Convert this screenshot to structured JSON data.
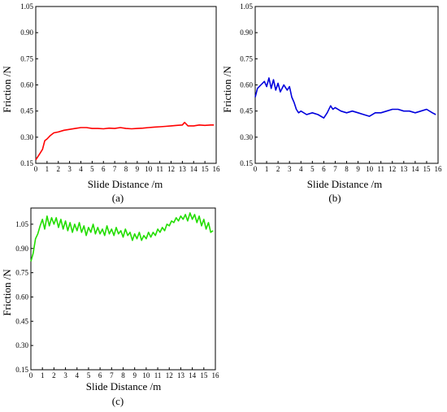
{
  "figure": {
    "panel_labels": [
      "(a)",
      "(b)",
      "(c)"
    ]
  },
  "chart_data": [
    {
      "type": "line",
      "panel": "(a)",
      "xlabel": "Slide Distance /m",
      "ylabel": "Friction /N",
      "xlim": [
        0,
        16
      ],
      "ylim": [
        0.15,
        1.05
      ],
      "xticks": [
        0,
        1,
        2,
        3,
        4,
        5,
        6,
        7,
        8,
        9,
        10,
        11,
        12,
        13,
        14,
        15,
        16
      ],
      "yticks": [
        0.15,
        0.3,
        0.45,
        0.6,
        0.75,
        0.9,
        1.05
      ],
      "yticklabels": [
        "0.15",
        "0.30",
        "0.45",
        "0.60",
        "0.75",
        "0.90",
        "1.05"
      ],
      "grid": false,
      "series": [
        {
          "color": "#ff0000",
          "x": [
            0,
            0.3,
            0.6,
            0.8,
            1.0,
            1.3,
            1.6,
            2.0,
            2.5,
            3.0,
            3.5,
            4.0,
            4.5,
            5.0,
            5.5,
            6.0,
            6.5,
            7.0,
            7.5,
            8.0,
            8.5,
            9.0,
            9.5,
            10.0,
            10.5,
            11.0,
            11.5,
            12.0,
            12.5,
            13.0,
            13.2,
            13.5,
            14.0,
            14.5,
            15.0,
            15.5,
            15.8
          ],
          "y": [
            0.17,
            0.2,
            0.23,
            0.28,
            0.29,
            0.31,
            0.325,
            0.33,
            0.34,
            0.345,
            0.35,
            0.355,
            0.355,
            0.35,
            0.35,
            0.348,
            0.352,
            0.35,
            0.355,
            0.35,
            0.348,
            0.35,
            0.352,
            0.355,
            0.358,
            0.36,
            0.362,
            0.365,
            0.368,
            0.37,
            0.385,
            0.365,
            0.365,
            0.37,
            0.368,
            0.37,
            0.37
          ]
        }
      ]
    },
    {
      "type": "line",
      "panel": "(b)",
      "xlabel": "Slide Distance /m",
      "ylabel": "Friction /N",
      "xlim": [
        0,
        16
      ],
      "ylim": [
        0.15,
        1.05
      ],
      "xticks": [
        0,
        1,
        2,
        3,
        4,
        5,
        6,
        7,
        8,
        9,
        10,
        11,
        12,
        13,
        14,
        15,
        16
      ],
      "yticks": [
        0.15,
        0.3,
        0.45,
        0.6,
        0.75,
        0.9,
        1.05
      ],
      "yticklabels": [
        "0.15",
        "0.30",
        "0.45",
        "0.60",
        "0.75",
        "0.90",
        "1.05"
      ],
      "grid": false,
      "series": [
        {
          "color": "#0000dd",
          "x": [
            0,
            0.2,
            0.5,
            0.8,
            1.0,
            1.2,
            1.4,
            1.6,
            1.8,
            2.0,
            2.2,
            2.5,
            2.8,
            3.0,
            3.2,
            3.4,
            3.6,
            3.8,
            4.0,
            4.5,
            5.0,
            5.5,
            6.0,
            6.3,
            6.6,
            6.8,
            7.0,
            7.5,
            8.0,
            8.5,
            9.0,
            9.5,
            10.0,
            10.5,
            11.0,
            11.5,
            12.0,
            12.5,
            13.0,
            13.5,
            14.0,
            14.5,
            15.0,
            15.5,
            15.8
          ],
          "y": [
            0.53,
            0.58,
            0.6,
            0.62,
            0.59,
            0.64,
            0.58,
            0.63,
            0.57,
            0.61,
            0.56,
            0.6,
            0.57,
            0.59,
            0.53,
            0.5,
            0.46,
            0.44,
            0.45,
            0.43,
            0.44,
            0.43,
            0.41,
            0.44,
            0.48,
            0.46,
            0.47,
            0.45,
            0.44,
            0.45,
            0.44,
            0.43,
            0.42,
            0.44,
            0.44,
            0.45,
            0.46,
            0.46,
            0.45,
            0.45,
            0.44,
            0.45,
            0.46,
            0.44,
            0.43
          ]
        }
      ]
    },
    {
      "type": "line",
      "panel": "(c)",
      "xlabel": "Slide Distance /m",
      "ylabel": "Friction /N",
      "xlim": [
        0,
        16
      ],
      "ylim": [
        0.15,
        1.15
      ],
      "xticks": [
        0,
        1,
        2,
        3,
        4,
        5,
        6,
        7,
        8,
        9,
        10,
        11,
        12,
        13,
        14,
        15,
        16
      ],
      "yticks": [
        0.15,
        0.3,
        0.45,
        0.6,
        0.75,
        0.9,
        1.05
      ],
      "yticklabels": [
        "0.15",
        "0.30",
        "0.45",
        "0.60",
        "0.75",
        "0.90",
        "1.05"
      ],
      "grid": false,
      "series": [
        {
          "color": "#22dd00",
          "x": [
            0,
            0.2,
            0.4,
            0.6,
            0.8,
            1.0,
            1.2,
            1.4,
            1.6,
            1.8,
            2.0,
            2.2,
            2.4,
            2.6,
            2.8,
            3.0,
            3.2,
            3.4,
            3.6,
            3.8,
            4.0,
            4.2,
            4.4,
            4.6,
            4.8,
            5.0,
            5.2,
            5.4,
            5.6,
            5.8,
            6.0,
            6.2,
            6.4,
            6.6,
            6.8,
            7.0,
            7.2,
            7.4,
            7.6,
            7.8,
            8.0,
            8.2,
            8.4,
            8.6,
            8.8,
            9.0,
            9.2,
            9.4,
            9.6,
            9.8,
            10.0,
            10.2,
            10.4,
            10.6,
            10.8,
            11.0,
            11.2,
            11.4,
            11.6,
            11.8,
            12.0,
            12.2,
            12.4,
            12.6,
            12.8,
            13.0,
            13.2,
            13.4,
            13.6,
            13.8,
            14.0,
            14.2,
            14.4,
            14.6,
            14.8,
            15.0,
            15.2,
            15.4,
            15.6,
            15.8
          ],
          "y": [
            0.82,
            0.87,
            0.96,
            0.99,
            1.04,
            1.08,
            1.02,
            1.1,
            1.04,
            1.09,
            1.05,
            1.09,
            1.03,
            1.08,
            1.02,
            1.07,
            1.01,
            1.06,
            1.0,
            1.05,
            1.01,
            1.06,
            1.0,
            1.04,
            0.98,
            1.03,
            1.0,
            1.05,
            0.99,
            1.03,
            0.99,
            1.02,
            0.98,
            1.04,
            0.99,
            1.02,
            0.98,
            1.03,
            0.99,
            1.01,
            0.97,
            1.02,
            0.98,
            1.0,
            0.95,
            0.99,
            0.96,
            1.0,
            0.95,
            0.98,
            0.96,
            1.0,
            0.97,
            1.0,
            0.98,
            1.02,
            1.0,
            1.03,
            1.01,
            1.05,
            1.04,
            1.07,
            1.06,
            1.09,
            1.07,
            1.1,
            1.08,
            1.11,
            1.07,
            1.12,
            1.08,
            1.11,
            1.06,
            1.1,
            1.04,
            1.08,
            1.02,
            1.06,
            1.0,
            1.01
          ]
        }
      ]
    }
  ]
}
